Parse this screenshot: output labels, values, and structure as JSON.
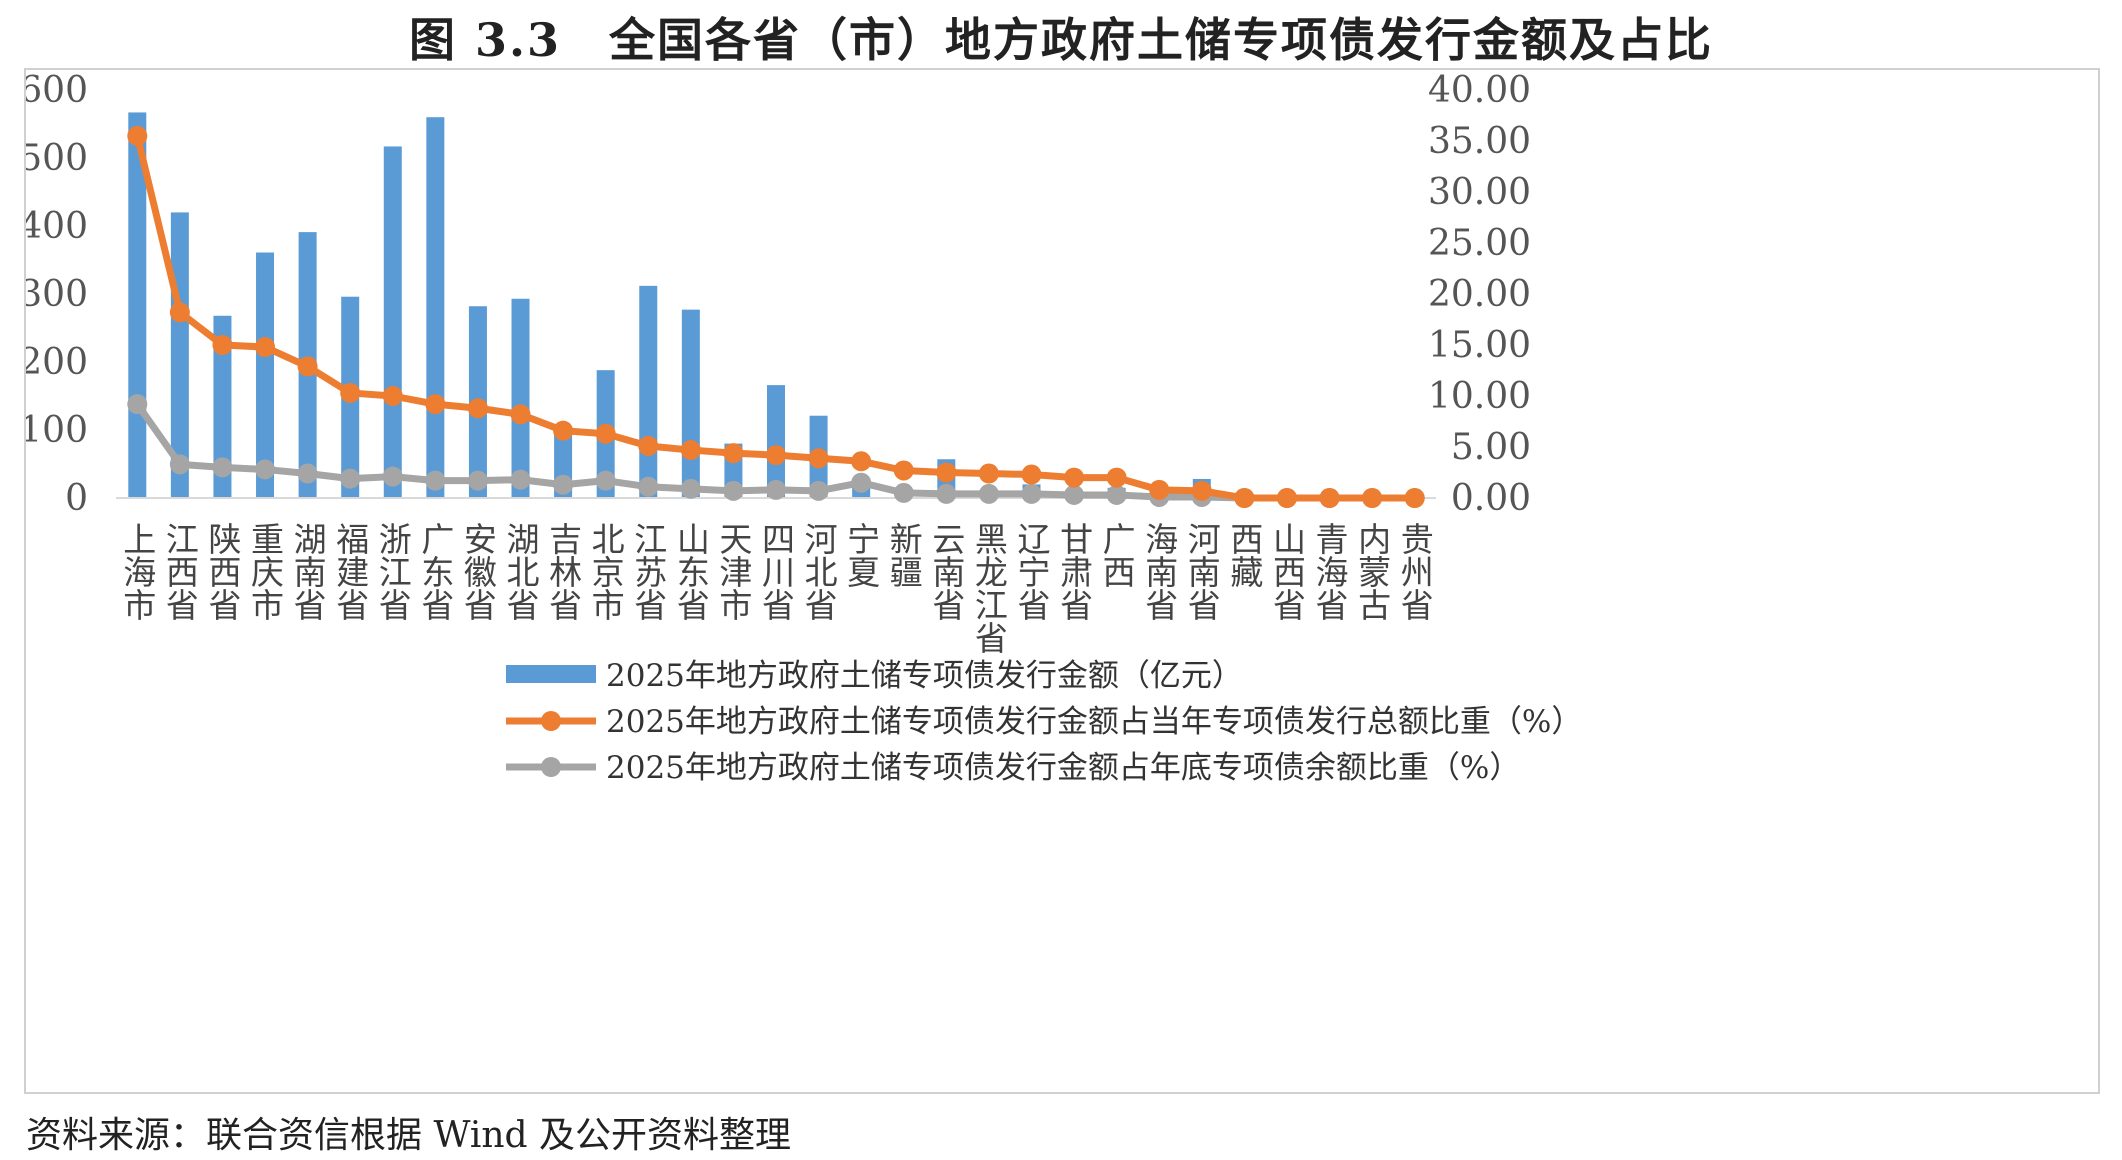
{
  "figure_title": "图 3.3　全国各省（市）地方政府土储专项债发行金额及占比",
  "source_note": "资料来源：联合资信根据 Wind 及公开资料整理",
  "colors": {
    "bar": "#5b9bd5",
    "series_orange": "#ed7d31",
    "series_gray": "#a5a5a5",
    "axis": "#d9d9d9"
  },
  "chart_data": {
    "type": "bar",
    "categories": [
      "上海市",
      "江西省",
      "陕西省",
      "重庆市",
      "湖南省",
      "福建省",
      "浙江省",
      "广东省",
      "安徽省",
      "湖北省",
      "吉林省",
      "北京市",
      "江苏省",
      "山东省",
      "天津市",
      "四川省",
      "河北省",
      "宁夏",
      "新疆",
      "云南省",
      "黑龙江省",
      "辽宁省",
      "甘肃省",
      "广西",
      "海南省",
      "河南省",
      "西藏",
      "山西省",
      "青海省",
      "内蒙古",
      "贵州省"
    ],
    "y_left": {
      "ylim": [
        0,
        600
      ],
      "ticks": [
        "0",
        "100",
        "200",
        "300",
        "400",
        "500",
        "600"
      ]
    },
    "y_right": {
      "ylim": [
        0,
        40
      ],
      "ticks": [
        "0.00",
        "5.00",
        "10.00",
        "15.00",
        "20.00",
        "25.00",
        "30.00",
        "35.00",
        "40.00"
      ]
    },
    "series": [
      {
        "name": "2025年地方政府土储专项债发行金额（亿元）",
        "type": "bar",
        "axis": "left",
        "values": [
          567,
          420,
          268,
          361,
          391,
          296,
          517,
          560,
          282,
          293,
          100,
          188,
          312,
          277,
          80,
          166,
          121,
          25,
          8,
          57,
          10,
          20,
          10,
          15,
          3,
          28,
          0,
          0,
          0,
          0,
          0
        ]
      },
      {
        "name": "2025年地方政府土储专项债发行金额占当年专项债发行总额比重（%）",
        "type": "line",
        "axis": "right",
        "values": [
          35.5,
          18.2,
          15.0,
          14.8,
          12.9,
          10.3,
          10.0,
          9.2,
          8.8,
          8.2,
          6.6,
          6.3,
          5.1,
          4.7,
          4.4,
          4.2,
          3.9,
          3.6,
          2.7,
          2.5,
          2.4,
          2.3,
          2.0,
          2.0,
          0.8,
          0.7,
          0,
          0,
          0,
          0,
          0
        ]
      },
      {
        "name": "2025年地方政府土储专项债发行金额占年底专项债余额比重（%）",
        "type": "line",
        "axis": "right",
        "values": [
          9.2,
          3.3,
          3.0,
          2.8,
          2.4,
          1.9,
          2.1,
          1.7,
          1.7,
          1.8,
          1.3,
          1.7,
          1.1,
          0.9,
          0.7,
          0.8,
          0.7,
          1.5,
          0.5,
          0.4,
          0.4,
          0.4,
          0.3,
          0.3,
          0.1,
          0.1,
          0,
          0,
          0,
          0,
          0
        ]
      }
    ],
    "legend_position": "bottom",
    "grid": false
  }
}
